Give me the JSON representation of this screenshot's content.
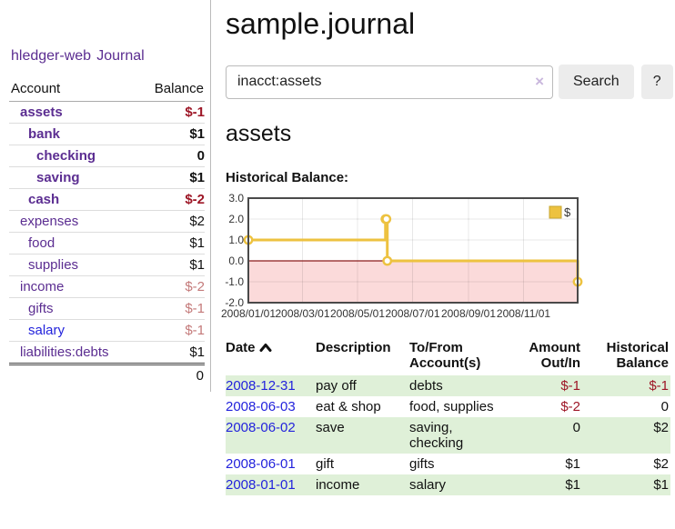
{
  "app": {
    "brand": "hledger-web",
    "nav_journal": "Journal"
  },
  "sidebar": {
    "header": {
      "account": "Account",
      "balance": "Balance"
    },
    "items": [
      {
        "label": "assets",
        "balance": "$-1",
        "depth": 1,
        "bold": true,
        "balance_style": "neg-strong",
        "link_style": "purple"
      },
      {
        "label": "bank",
        "balance": "$1",
        "depth": 2,
        "bold": true,
        "balance_style": "plain",
        "link_style": "purple"
      },
      {
        "label": "checking",
        "balance": "0",
        "depth": 3,
        "bold": true,
        "balance_style": "plain",
        "link_style": "purple"
      },
      {
        "label": "saving",
        "balance": "$1",
        "depth": 3,
        "bold": true,
        "balance_style": "plain",
        "link_style": "purple"
      },
      {
        "label": "cash",
        "balance": "$-2",
        "depth": 2,
        "bold": true,
        "balance_style": "neg-strong",
        "link_style": "purple"
      },
      {
        "label": "expenses",
        "balance": "$2",
        "depth": 1,
        "bold": false,
        "balance_style": "plain",
        "link_style": "purple"
      },
      {
        "label": "food",
        "balance": "$1",
        "depth": 2,
        "bold": false,
        "balance_style": "plain",
        "link_style": "purple"
      },
      {
        "label": "supplies",
        "balance": "$1",
        "depth": 2,
        "bold": false,
        "balance_style": "plain",
        "link_style": "purple"
      },
      {
        "label": "income",
        "balance": "$-2",
        "depth": 1,
        "bold": false,
        "balance_style": "neg-muted",
        "link_style": "purple"
      },
      {
        "label": "gifts",
        "balance": "$-1",
        "depth": 2,
        "bold": false,
        "balance_style": "neg-muted",
        "link_style": "purple"
      },
      {
        "label": "salary",
        "balance": "$-1",
        "depth": 2,
        "bold": false,
        "balance_style": "neg-muted",
        "link_style": "blue"
      },
      {
        "label": "liabilities:debts",
        "balance": "$1",
        "depth": 1,
        "bold": false,
        "balance_style": "plain",
        "link_style": "purple"
      }
    ],
    "total": "0"
  },
  "header": {
    "title": "sample.journal"
  },
  "search": {
    "value": "inacct:assets",
    "clear_icon": "×",
    "button_label": "Search",
    "help_label": "?"
  },
  "account_page": {
    "heading": "assets",
    "chart_label": "Historical Balance:"
  },
  "chart_data": {
    "type": "line",
    "title": "Historical Balance:",
    "series": [
      {
        "name": "$",
        "style": "steps-after",
        "markers": true,
        "color": "#EDC240",
        "points": [
          [
            "2008-01-01",
            1
          ],
          [
            "2008-06-01",
            2
          ],
          [
            "2008-06-02",
            2
          ],
          [
            "2008-06-03",
            0
          ],
          [
            "2008-12-31",
            -1
          ]
        ]
      }
    ],
    "x_range": [
      "2008-01-01",
      "2008-12-31"
    ],
    "x_tick_labels": [
      "2008/01/01",
      "2008/03/01",
      "2008/05/01",
      "2008/07/01",
      "2008/09/01",
      "2008/11/01"
    ],
    "y_ticks": [
      3,
      2,
      1,
      0,
      -1,
      -2
    ],
    "y_tick_labels": [
      "3.0",
      "2.0",
      "1.0",
      "0.0",
      "-1.0",
      "-2.0"
    ],
    "ylim": [
      -2,
      3
    ],
    "grid": true,
    "legend": {
      "position": "top-right",
      "label": "$"
    },
    "colors": {
      "negative_region_fill": "#fbdada",
      "zero_line": "#8b1b1b",
      "border": "#4a4a4a",
      "tick_text": "#333333"
    }
  },
  "register": {
    "columns": [
      {
        "label": "Date",
        "sortable": true,
        "align": "left"
      },
      {
        "label": "Description",
        "align": "left"
      },
      {
        "label": "To/From\nAccount(s)",
        "align": "left"
      },
      {
        "label": "Amount\nOut/In",
        "align": "right"
      },
      {
        "label": "Historical\nBalance",
        "align": "right"
      }
    ],
    "rows": [
      {
        "date": "2008-12-31",
        "description": "pay off",
        "accounts": "debts",
        "amount": "$-1",
        "amount_neg": true,
        "balance": "$-1",
        "balance_neg": true
      },
      {
        "date": "2008-06-03",
        "description": "eat & shop",
        "accounts": "food, supplies",
        "amount": "$-2",
        "amount_neg": true,
        "balance": "0",
        "balance_neg": false
      },
      {
        "date": "2008-06-02",
        "description": "save",
        "accounts": "saving,\nchecking",
        "amount": "0",
        "amount_neg": false,
        "balance": "$2",
        "balance_neg": false
      },
      {
        "date": "2008-06-01",
        "description": "gift",
        "accounts": "gifts",
        "amount": "$1",
        "amount_neg": false,
        "balance": "$2",
        "balance_neg": false
      },
      {
        "date": "2008-01-01",
        "description": "income",
        "accounts": "salary",
        "amount": "$1",
        "amount_neg": false,
        "balance": "$1",
        "balance_neg": false
      }
    ]
  }
}
